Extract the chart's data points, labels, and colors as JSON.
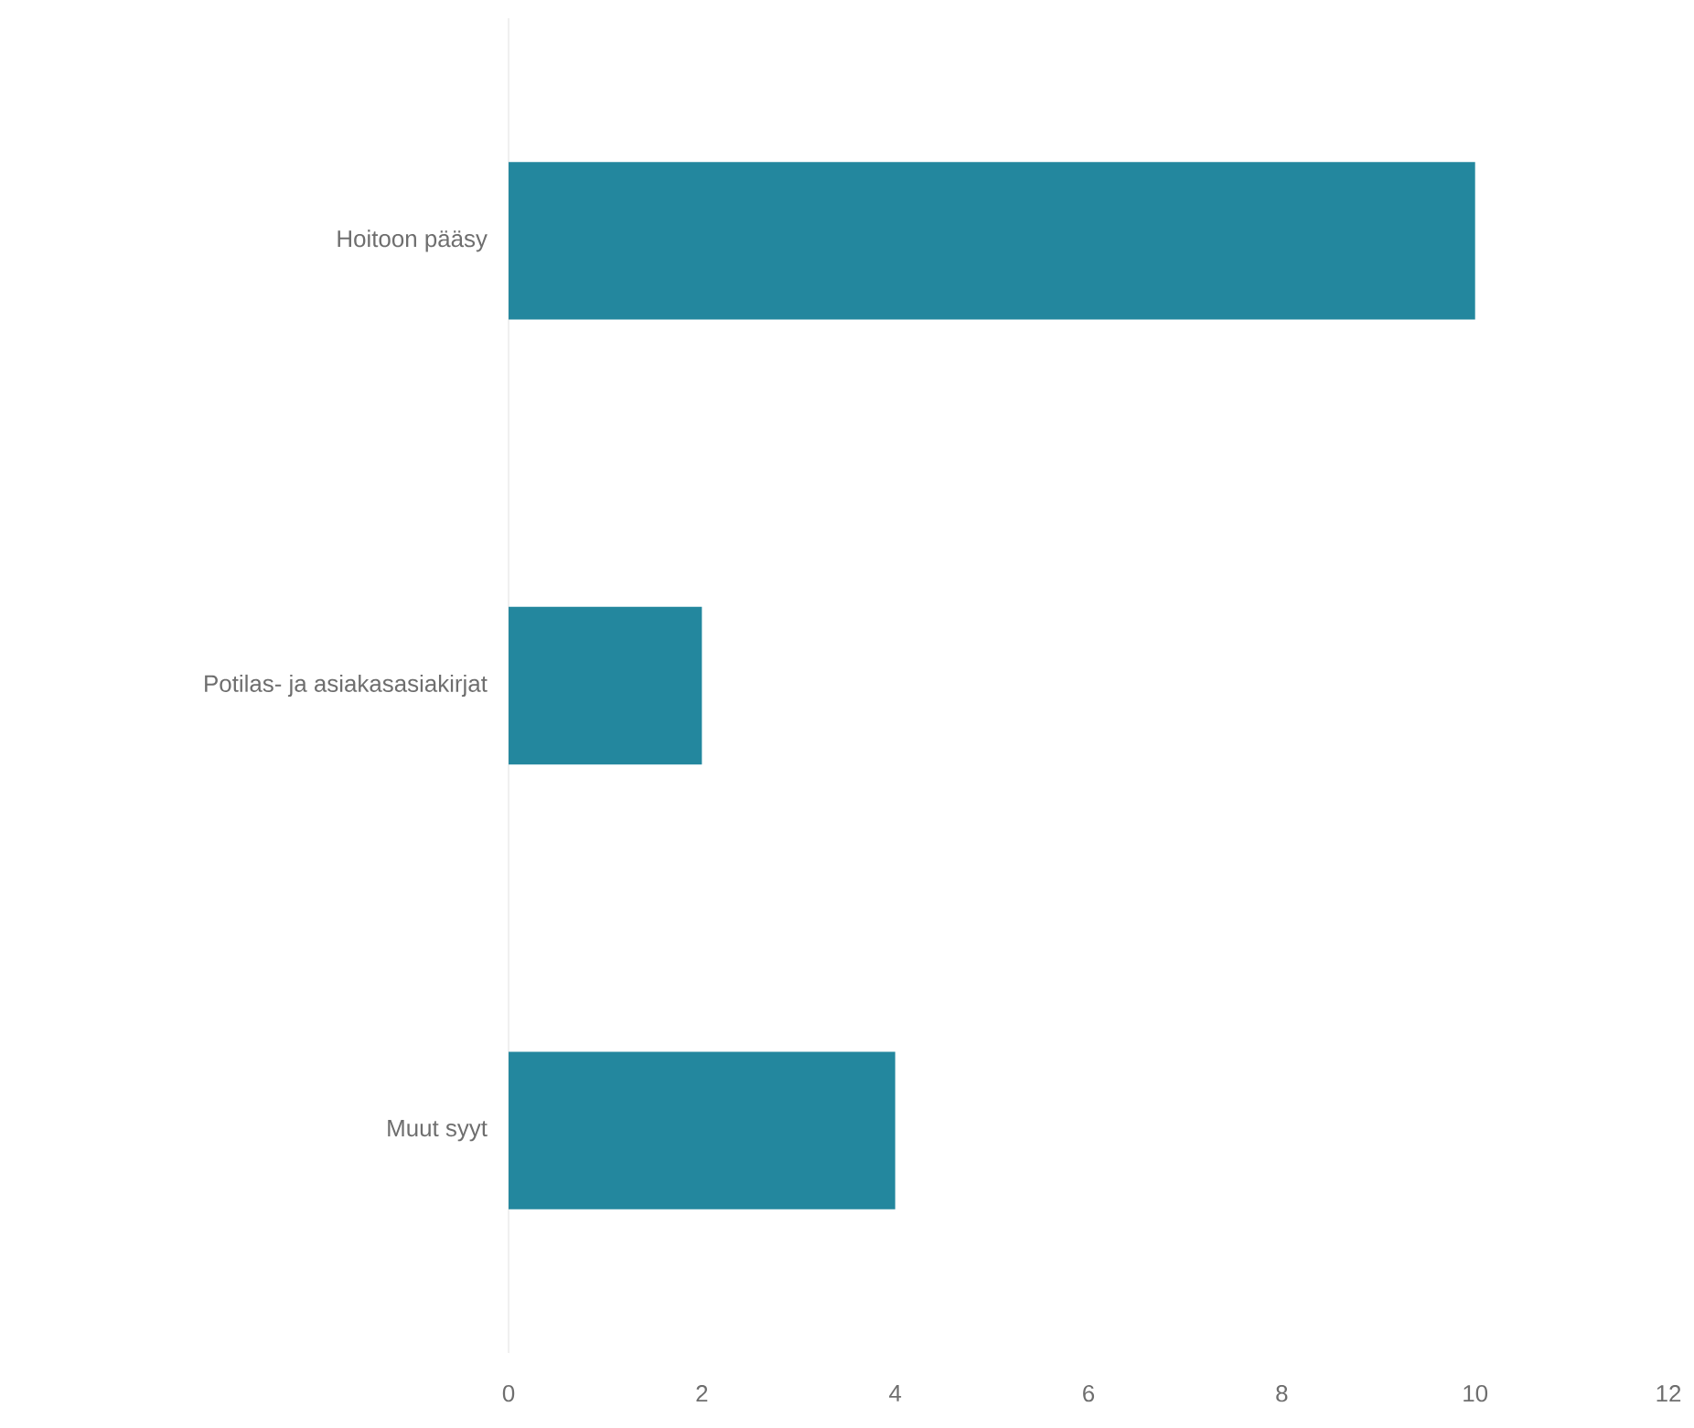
{
  "chart_data": {
    "type": "bar",
    "orientation": "horizontal",
    "categories": [
      "Hoitoon pääsy",
      "Potilas- ja asiakasasiakirjat",
      "Muut syyt"
    ],
    "values": [
      10,
      2,
      4
    ],
    "color": "#23879e",
    "xlim": [
      0,
      12
    ],
    "xticks": [
      0,
      2,
      4,
      6,
      8,
      10,
      12
    ]
  }
}
